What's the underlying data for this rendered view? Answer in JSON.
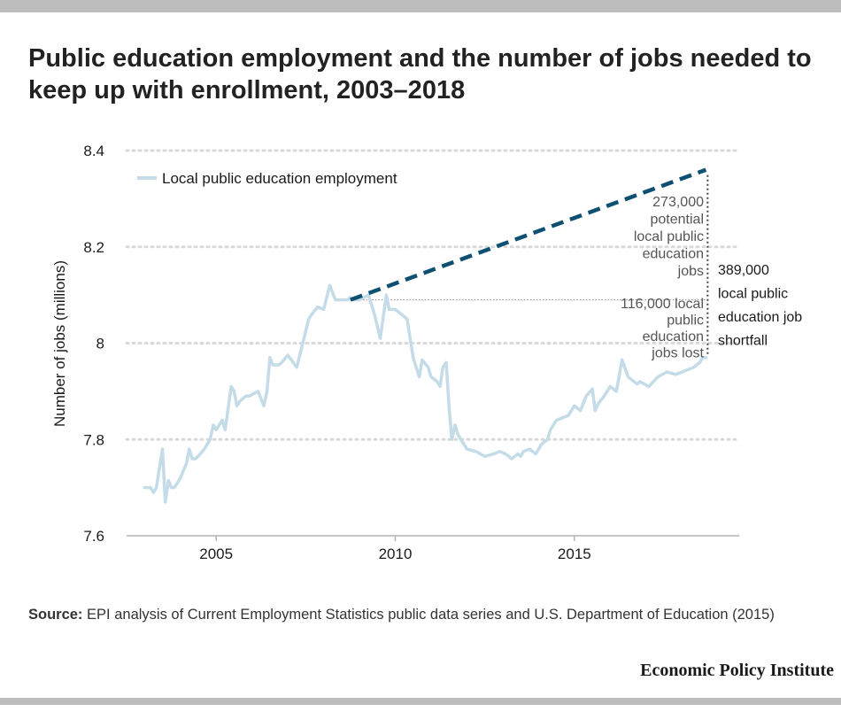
{
  "title": "Public education employment and the number of jobs needed to keep up with enrollment, 2003–2018",
  "source_label": "Source:",
  "source_text": "EPI analysis of Current Employment Statistics  public data series and U.S. Department of Education (2015)",
  "logo": "Economic Policy Institute",
  "colors": {
    "employment": "#c4dbe8",
    "needed": "#0e5072",
    "grid": "#d9d9d9",
    "axis": "#b3b3b3",
    "text": "#1a1a1a",
    "annot": "#555555"
  },
  "chart_data": {
    "type": "line",
    "title": "Public education employment and the number of jobs needed to keep up with enrollment, 2003–2018",
    "xlabel": "",
    "ylabel": "Number of jobs (millions)",
    "xlim": [
      2002.5,
      2019.6
    ],
    "ylim": [
      7.6,
      8.4
    ],
    "xticks": [
      2005,
      2010,
      2015
    ],
    "yticks": [
      7.6,
      7.8,
      8,
      8.2,
      8.4
    ],
    "ytick_labels": [
      "7.6",
      "7.8",
      "8",
      "8.2",
      "8.4"
    ],
    "grid": true,
    "legend": {
      "position": "top-left",
      "entries": [
        "Local public education employment"
      ]
    },
    "series": [
      {
        "name": "Local public education employment",
        "style": "solid",
        "x": [
          2003.0,
          2003.17,
          2003.25,
          2003.33,
          2003.5,
          2003.58,
          2003.67,
          2003.75,
          2003.83,
          2003.92,
          2004.0,
          2004.17,
          2004.25,
          2004.33,
          2004.42,
          2004.5,
          2004.67,
          2004.83,
          2004.92,
          2005.0,
          2005.17,
          2005.25,
          2005.42,
          2005.5,
          2005.58,
          2005.67,
          2005.75,
          2005.83,
          2005.92,
          2006.17,
          2006.33,
          2006.42,
          2006.5,
          2006.58,
          2006.75,
          2006.83,
          2007.0,
          2007.25,
          2007.42,
          2007.58,
          2007.67,
          2007.83,
          2008.0,
          2008.17,
          2008.33,
          2008.42,
          2008.58,
          2008.67,
          2008.75,
          2008.83,
          2009.0,
          2009.25,
          2009.42,
          2009.58,
          2009.75,
          2009.83,
          2010.0,
          2010.17,
          2010.33,
          2010.5,
          2010.67,
          2010.75,
          2010.92,
          2011.0,
          2011.17,
          2011.25,
          2011.33,
          2011.42,
          2011.5,
          2011.58,
          2011.67,
          2011.75,
          2011.83,
          2012.0,
          2012.25,
          2012.5,
          2012.75,
          2012.92,
          2013.08,
          2013.25,
          2013.42,
          2013.5,
          2013.58,
          2013.75,
          2013.92,
          2014.08,
          2014.25,
          2014.33,
          2014.5,
          2014.67,
          2014.83,
          2015.0,
          2015.17,
          2015.33,
          2015.5,
          2015.58,
          2015.67,
          2015.83,
          2016.0,
          2016.17,
          2016.33,
          2016.5,
          2016.67,
          2016.75,
          2016.83,
          2017.08,
          2017.33,
          2017.58,
          2017.83,
          2018.0,
          2018.17,
          2018.33,
          2018.5,
          2018.58,
          2018.67
        ],
        "values": [
          7.7,
          7.7,
          7.69,
          7.7,
          7.78,
          7.67,
          7.715,
          7.7,
          7.7,
          7.71,
          7.72,
          7.75,
          7.78,
          7.76,
          7.76,
          7.765,
          7.78,
          7.8,
          7.83,
          7.82,
          7.84,
          7.82,
          7.91,
          7.9,
          7.87,
          7.88,
          7.885,
          7.89,
          7.89,
          7.9,
          7.87,
          7.9,
          7.97,
          7.955,
          7.955,
          7.96,
          7.975,
          7.95,
          8.0,
          8.05,
          8.06,
          8.075,
          8.07,
          8.12,
          8.09,
          8.09,
          8.09,
          8.09,
          8.095,
          8.09,
          8.09,
          8.1,
          8.06,
          8.01,
          8.1,
          8.07,
          8.07,
          8.06,
          8.05,
          7.97,
          7.93,
          7.965,
          7.95,
          7.93,
          7.92,
          7.91,
          7.95,
          7.96,
          7.87,
          7.8,
          7.83,
          7.81,
          7.8,
          7.78,
          7.775,
          7.765,
          7.77,
          7.775,
          7.77,
          7.76,
          7.77,
          7.765,
          7.775,
          7.78,
          7.77,
          7.79,
          7.8,
          7.82,
          7.84,
          7.845,
          7.85,
          7.87,
          7.86,
          7.89,
          7.905,
          7.86,
          7.875,
          7.89,
          7.91,
          7.9,
          7.965,
          7.93,
          7.92,
          7.915,
          7.92,
          7.91,
          7.93,
          7.94,
          7.935,
          7.94,
          7.945,
          7.95,
          7.96,
          7.97,
          7.97
        ]
      },
      {
        "name": "",
        "style": "dashed",
        "x": [
          2008.75,
          2018.67
        ],
        "values": [
          8.09,
          8.36
        ]
      }
    ],
    "annotations": [
      {
        "lines": [
          "273,000",
          "potential",
          "local public",
          "education",
          "jobs"
        ]
      },
      {
        "lines": [
          "116,000 local",
          "public",
          "education",
          "jobs lost"
        ]
      },
      {
        "lines": [
          "389,000",
          "local public",
          "education job",
          "shortfall"
        ]
      }
    ]
  }
}
